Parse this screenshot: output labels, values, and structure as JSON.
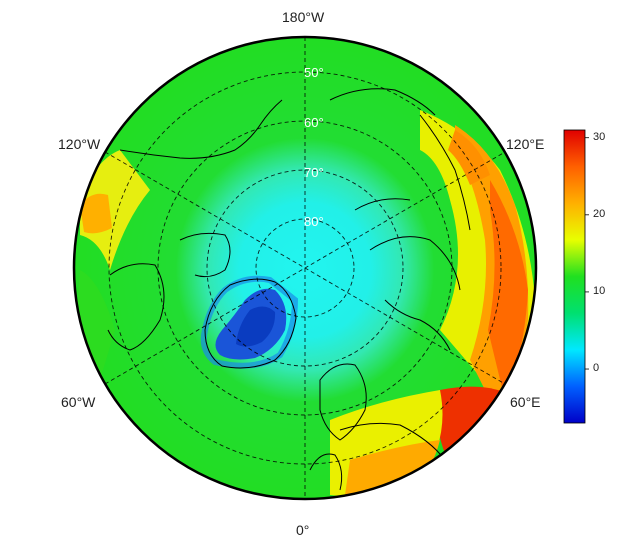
{
  "map": {
    "projection": "north polar stereographic",
    "longitude_labels": {
      "top": "180°W",
      "bottom": "0°",
      "upper_left": "120°W",
      "upper_right": "120°E",
      "lower_left": "60°W",
      "lower_right": "60°E"
    },
    "latitude_labels": [
      "50°",
      "60°",
      "70°",
      "80°"
    ],
    "latitude_circles": [
      50,
      60,
      70,
      80
    ],
    "outer_latitude": 40,
    "graticule_style": "dashed",
    "regions": [
      {
        "name": "greenland-interior",
        "level": -5,
        "color": "#1a55d8"
      },
      {
        "name": "arctic-ocean",
        "level": 2,
        "color": "#25f0ee"
      },
      {
        "name": "subarctic",
        "level": 12,
        "color": "#22dd22"
      },
      {
        "name": "mid-latitude-land",
        "level": 20,
        "color": "#f2f200"
      },
      {
        "name": "warm-regions",
        "level": 26,
        "color": "#ff8800"
      },
      {
        "name": "hot-regions",
        "level": 30,
        "color": "#ee2200"
      }
    ]
  },
  "colorbar": {
    "ticks": [
      "30",
      "20",
      "10",
      "0"
    ],
    "tick_values": [
      30,
      20,
      10,
      0
    ],
    "min": -7,
    "max": 31,
    "colors": [
      "#0000c8",
      "#0060ff",
      "#00e8ff",
      "#00e070",
      "#20e020",
      "#e8ff00",
      "#ffb000",
      "#ff6000",
      "#e00000"
    ]
  }
}
